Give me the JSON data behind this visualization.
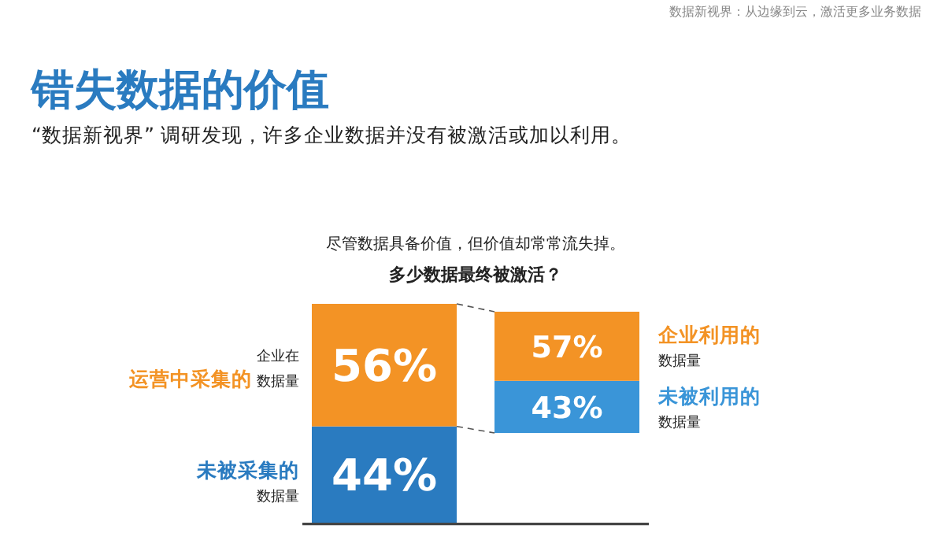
{
  "chart_data": [
    {
      "type": "bar",
      "stacked": true,
      "title": "错失数据的价值",
      "subtitle": "“数据新视界” 调研发现，许多企业数据并没有被激活或加以利用。",
      "categories": [
        null
      ],
      "series": [
        {
          "color": "#2a7bc0",
          "values": [
            44
          ],
          "value_labels": [
            "44%"
          ]
        },
        {
          "color": "#f39325",
          "values": [
            56
          ],
          "value_labels": [
            "56%"
          ]
        }
      ],
      "annotations": [
        "数据新视界：从边缘到云，激活更多业务数据",
        "尽管数据具备价值，但价值却常常流失掉。",
        "多少数据最终被激活？",
        "企业在",
        "运营中采集的",
        "数据量",
        "未被采集的",
        "数据量"
      ]
    },
    {
      "type": "bar",
      "stacked": true,
      "categories": [
        null
      ],
      "series": [
        {
          "color": "#3a95d8",
          "values": [
            43
          ],
          "value_labels": [
            "43%"
          ]
        },
        {
          "color": "#f39325",
          "values": [
            57
          ],
          "value_labels": [
            "57%"
          ]
        }
      ],
      "annotations": [
        "企业利用的",
        "数据量",
        "未被利用的",
        "数据量"
      ]
    }
  ]
}
